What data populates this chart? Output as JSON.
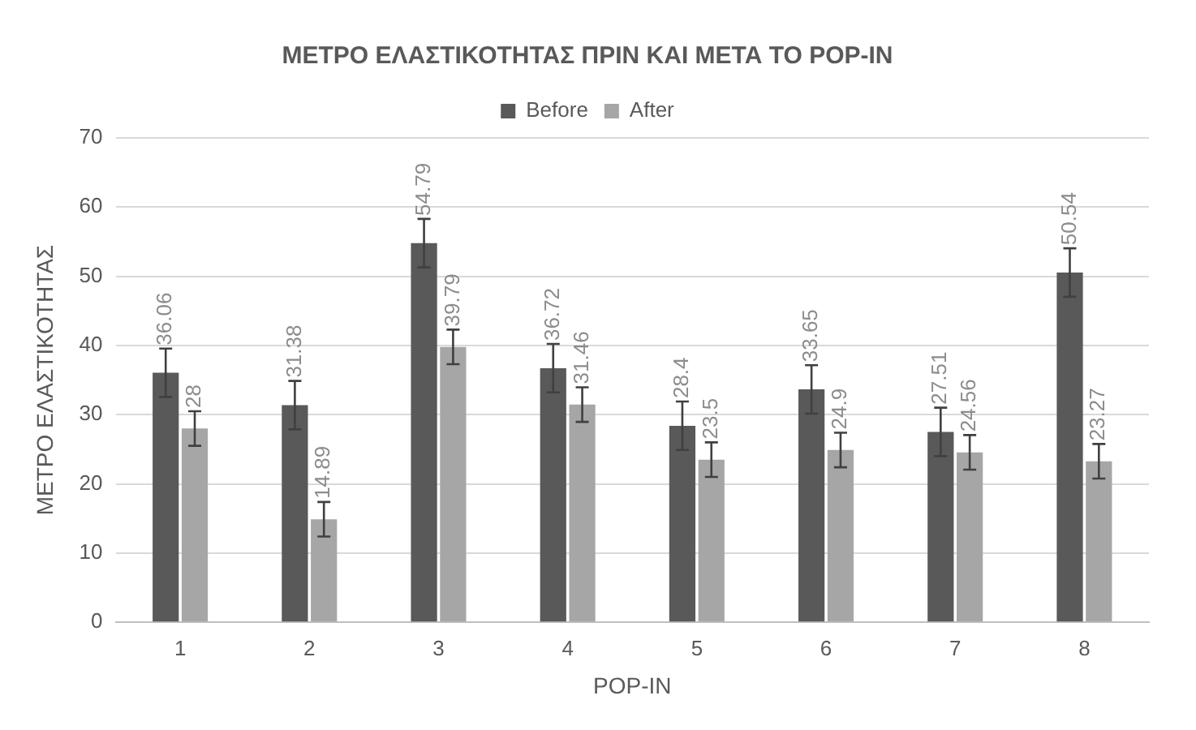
{
  "chart_data": {
    "type": "bar",
    "title": "ΜΕΤΡΟ ΕΛΑΣΤΙΚΟΤΗΤΑΣ ΠΡΙΝ ΚΑΙ ΜΕΤΑ ΤΟ POP-IN",
    "xlabel": "POP-IN",
    "ylabel": "ΜΕΤΡΟ ΕΛΑΣΤΙΚΟΤΗΤΑΣ",
    "categories": [
      "1",
      "2",
      "3",
      "4",
      "5",
      "6",
      "7",
      "8"
    ],
    "series": [
      {
        "name": "Before",
        "color": "#595959",
        "values": [
          36.06,
          31.38,
          54.79,
          36.72,
          28.4,
          33.65,
          27.51,
          50.54
        ],
        "errors": [
          3.5,
          3.5,
          3.5,
          3.5,
          3.5,
          3.5,
          3.5,
          3.5
        ]
      },
      {
        "name": "After",
        "color": "#a6a6a6",
        "values": [
          28,
          14.89,
          39.79,
          31.46,
          23.5,
          24.9,
          24.56,
          23.27
        ],
        "errors": [
          2.5,
          2.5,
          2.5,
          2.5,
          2.5,
          2.5,
          2.5,
          2.5
        ]
      }
    ],
    "ylim": [
      0,
      70
    ],
    "yticks": [
      0,
      10,
      20,
      30,
      40,
      50,
      60,
      70
    ],
    "grid": "y",
    "legend": "top",
    "data_labels": true
  }
}
